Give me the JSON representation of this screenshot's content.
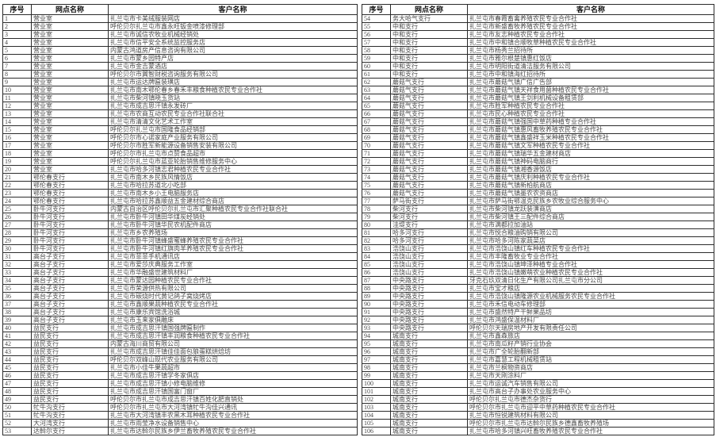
{
  "tables": {
    "columns": [
      "序号",
      "网点名称",
      "客户名称"
    ],
    "left_rows": [
      [
        "1",
        "营业室",
        "扎兰屯市卡美绒服装网店"
      ],
      [
        "2",
        "营业室",
        "呼伦贝尔扎兰屯市鑫永旺钣金喷漆修理部"
      ],
      [
        "3",
        "营业室",
        "扎兰屯市诚信农牧业机械经销处"
      ],
      [
        "4",
        "营业室",
        "扎兰屯市信平安全系统监控服务店"
      ],
      [
        "5",
        "营业室",
        "内蒙古鸿道房产信息咨询有限公司"
      ],
      [
        "6",
        "营业室",
        "扎兰屯市蒙乡园特产店"
      ],
      [
        "7",
        "营业室",
        "扎兰屯市金吉蒙酒店"
      ],
      [
        "8",
        "营业室",
        "呼伦贝尔市翼智财税咨询服务有限公司"
      ],
      [
        "9",
        "营业室",
        "扎兰屯市运达牌匾装璜店"
      ],
      [
        "10",
        "营业室",
        "扎兰屯市南木鄂伦春乡春禾丰粮食种植农民专业合作社"
      ],
      [
        "11",
        "营业室",
        "扎兰屯市柴河镇晓玉货站"
      ],
      [
        "12",
        "营业室",
        "扎兰屯市成吉思汗镇永发砖厂"
      ],
      [
        "13",
        "营业室",
        "扎兰屯市农商互动农民专业合作社联合社"
      ],
      [
        "14",
        "营业室",
        "扎兰屯市清清文化艺术工作室"
      ],
      [
        "15",
        "营业室",
        "呼伦贝尔扎兰屯市国隆食品经销部"
      ],
      [
        "16",
        "营业室",
        "呼伦贝尔市心诺家庭产业服务有限公司"
      ],
      [
        "17",
        "营业室",
        "呼伦贝尔市胜军新能源设备销售安装有限公司"
      ],
      [
        "18",
        "营业室",
        "呼伦贝尔市扎兰屯市点赞食品超市"
      ],
      [
        "19",
        "营业室",
        "呼伦贝尔扎兰屯市蓝亚轮胎销售维修服务中心"
      ],
      [
        "20",
        "营业室",
        "扎兰屯市哈多河镇志君种植农民专业合作社"
      ],
      [
        "21",
        "鄂伦春支行",
        "扎兰屯市南木乡民族风情饭店"
      ],
      [
        "22",
        "鄂伦春支行",
        "扎兰屯市哈拉苏道北小吃部"
      ],
      [
        "23",
        "鄂伦春支行",
        "扎兰屯市南木乡小王电脑服务店"
      ],
      [
        "24",
        "鄂伦春支行",
        "扎兰屯市哈拉苏鑫顺益五金建材综合商店"
      ],
      [
        "25",
        "卧牛河支行",
        "内蒙古自治区呼伦贝尔扎兰屯市汇聚种植农民专业合作社联合社"
      ],
      [
        "26",
        "卧牛河支行",
        "扎兰屯市卧牛河镇田华煤炭经销处"
      ],
      [
        "27",
        "卧牛河支行",
        "扎兰屯市卧牛河镇华民农机配件商店"
      ],
      [
        "28",
        "卧牛河支行",
        "扎兰屯市乡农养殖场"
      ],
      [
        "29",
        "卧牛河支行",
        "扎兰屯市卧牛河镇蜂盛蜜蜂养殖农民专业合作社"
      ],
      [
        "30",
        "卧牛河支行",
        "扎兰屯市卧牛河镇红旗肉羊养殖农民专业合作社"
      ],
      [
        "31",
        "高台子支行",
        "扎兰屯市菲菲手机通讯店"
      ],
      [
        "32",
        "高台子支行",
        "扎兰屯市爱莎庆典服务工作室"
      ],
      [
        "33",
        "高台子支行",
        "扎兰屯市华融盛世建筑材料厂"
      ],
      [
        "34",
        "高台子支行",
        "扎兰屯市蒙达园种植农民专业合作社"
      ],
      [
        "35",
        "高台子支行",
        "扎兰屯市荣源供热有限公司"
      ],
      [
        "36",
        "高台子支行",
        "扎兰屯市碳烧时代黄记鸽子窝烧烤店"
      ],
      [
        "37",
        "高台子支行",
        "扎兰屯市鑫顺果蔬种植农民专业合作社"
      ],
      [
        "38",
        "高台子支行",
        "扎兰屯市康乐宾馆洗浴城"
      ],
      [
        "39",
        "高台子支行",
        "扎兰屯市玉来家俱雕床"
      ],
      [
        "40",
        "益民支行",
        "扎兰屯市成吉思汗镇国强牌匾制作"
      ],
      [
        "41",
        "益民支行",
        "扎兰屯市成吉思汗镇丰润粮食种植农民专业合作社"
      ],
      [
        "42",
        "益民支行",
        "内蒙古海川商贸有限公司"
      ],
      [
        "43",
        "益民支行",
        "扎兰屯市成吉思汗镇佳佳面包狼蛋糕烘焙坊"
      ],
      [
        "44",
        "益民支行",
        "呼伦贝尔双峰山现代农业服务有限公司"
      ],
      [
        "45",
        "益民支行",
        "扎兰屯市小佳牛果蔬超市"
      ],
      [
        "46",
        "益民支行",
        "扎兰屯市成吉思汗镇学冬家俱店"
      ],
      [
        "47",
        "益民支行",
        "扎兰屯市成吉思汗镇小修电脑维修"
      ],
      [
        "48",
        "益民支行",
        "扎兰屯市成吉思汗镇国富门窗厂"
      ],
      [
        "49",
        "益民支行",
        "呼伦贝尔市扎兰屯市成吉思汗镇百姓化肥直销处"
      ],
      [
        "50",
        "牤牛沟支行",
        "呼伦贝尔市扎兰屯市大河湾镇牤牛沟佳兴通讯"
      ],
      [
        "51",
        "牤牛沟支行",
        "扎兰屯市大河湾镇丰农黑木耳种植农民专业合作社"
      ],
      [
        "52",
        "大河湾支行",
        "扎兰屯市雨莹净水设备销售中心"
      ],
      [
        "53",
        "达斡尔支行",
        "扎兰屯市达斡尔民族乡伊兰畜牧养殖农民专业合作社"
      ]
    ],
    "right_rows": [
      [
        "54",
        "务大哈气支行",
        "扎兰屯市春霞畜禽养殖农民专业合作社"
      ],
      [
        "55",
        "中和支行",
        "扎兰屯市新盛畜牧养殖农民专业合作社"
      ],
      [
        "56",
        "中和支行",
        "扎兰屯市友志种植农民专业合作社"
      ],
      [
        "57",
        "中和支行",
        "扎兰屯市中和镇合顺牧草种植农民专业合作社"
      ],
      [
        "58",
        "中和支行",
        "扎兰屯市杨秀兰招待所"
      ],
      [
        "59",
        "中和支行",
        "扎兰屯市雅尔根楚镇惠红饭店"
      ],
      [
        "60",
        "中和支行",
        "扎兰屯市明阳街道清洁服务有限公司"
      ],
      [
        "61",
        "中和支行",
        "扎兰屯市中和镇海红招待所"
      ],
      [
        "62",
        "蘑菇气支行",
        "扎兰屯市蘑菇气镇广信广告部"
      ],
      [
        "63",
        "蘑菇气支行",
        "扎兰屯市蘑菇气镇天祥食用菌种植农民专业合作社"
      ],
      [
        "64",
        "蘑菇气支行",
        "扎兰屯市蘑菇气镇王剑利机械设备租赁部"
      ],
      [
        "65",
        "蘑菇气支行",
        "扎兰屯市胜军种植农民专业合作社"
      ],
      [
        "66",
        "蘑菇气支行",
        "扎兰屯市民心种植农民专业合作社"
      ],
      [
        "67",
        "蘑菇气支行",
        "扎兰屯市蘑菇气镇强国中草药种植专业合作社"
      ],
      [
        "68",
        "蘑菇气支行",
        "扎兰屯市蘑菇气镇惠风畜牧养殖农民专业合作社"
      ],
      [
        "69",
        "蘑菇气支行",
        "扎兰屯市蘑菇气镇鑫盛祥玉米种植农民专业合作社"
      ],
      [
        "70",
        "蘑菇气支行",
        "扎兰屯市蘑菇气镇文军种植农民专业合作社"
      ],
      [
        "71",
        "蘑菇气支行",
        "扎兰屯市蘑菇气镇瑞华五金建材商店"
      ],
      [
        "72",
        "蘑菇气支行",
        "扎兰屯市蘑菇气镇神码电脑商行"
      ],
      [
        "73",
        "蘑菇气支行",
        "扎兰屯市蘑菇气镇湘香源饭店"
      ],
      [
        "74",
        "蘑菇气支行",
        "扎兰屯市蘑菇气镇庆利种植农民专业合作社"
      ],
      [
        "75",
        "蘑菇气支行",
        "扎兰屯市蘑菇气镇新柏航商店"
      ],
      [
        "76",
        "蘑菇气支行",
        "扎兰屯市蘑菇气镇墨农农资商店"
      ],
      [
        "77",
        "萨马街支行",
        "扎兰屯市萨马街鄂温克民族乡农牧业综合服务中心"
      ],
      [
        "78",
        "柴河支行",
        "扎兰屯市柴河镇龙跃装潢商店"
      ],
      [
        "79",
        "柴河支行",
        "扎兰屯市柴河镇王三配件综合商店"
      ],
      [
        "80",
        "洼堤支行",
        "扎兰屯市满都拉加油站"
      ],
      [
        "81",
        "哈多河支行",
        "扎兰屯市悦合粮油购销有限公司"
      ],
      [
        "82",
        "哈多河支行",
        "扎兰屯市哈多河陈家蔬菜店"
      ],
      [
        "83",
        "浩饶山支行",
        "扎兰屯市浩饶山镇红车种植农民专业合作社"
      ],
      [
        "84",
        "浩饶山支行",
        "扎兰屯市丰隆畜牧业专业合作社"
      ],
      [
        "85",
        "浩饶山支行",
        "扎兰屯市浩饶山镇坤泽种植专业合作社"
      ],
      [
        "86",
        "浩饶山支行",
        "扎兰屯市浩饶山镇嫩萌农业种植农民专业合作社"
      ],
      [
        "87",
        "中央路支行",
        "牙克石玖双清日化生产有限公司扎兰屯市分公司"
      ],
      [
        "88",
        "中央路支行",
        "扎兰屯市宝才粮店"
      ],
      [
        "89",
        "中央路支行",
        "扎兰屯市浩饶山镇隆源农业机械服务农民专业合作社"
      ],
      [
        "90",
        "中央路支行",
        "扎兰屯市禾信电动车修理部"
      ],
      [
        "91",
        "中央路支行",
        "扎兰屯市盛然特产干鲜果品坊"
      ],
      [
        "92",
        "中央路支行",
        "扎兰屯市鸿盛保温材料厂"
      ],
      [
        "93",
        "中央路支行",
        "呼伦贝尔天瑞房地产开发有限责任公司"
      ],
      [
        "94",
        "城南支行",
        "扎兰屯市鑫森旅店"
      ],
      [
        "95",
        "城南支行",
        "扎兰屯市南瓜籽产销行业协会"
      ],
      [
        "96",
        "城南支行",
        "扎兰屯市广全轮胎翻新部"
      ],
      [
        "97",
        "城南支行",
        "扎兰屯市嘉慧工程机械租赁站"
      ],
      [
        "98",
        "城南支行",
        "扎兰屯市兰枫物资商店"
      ],
      [
        "99",
        "城南支行",
        "扎兰屯市天刚涂料厂"
      ],
      [
        "100",
        "城南支行",
        "扎兰屯市运诚汽车销售有限公司"
      ],
      [
        "101",
        "城南支行",
        "扎兰屯市高台子办事处农业服务中心"
      ],
      [
        "102",
        "城南支行",
        "呼伦贝尔扎兰屯市德杰杂货行"
      ],
      [
        "103",
        "城南支行",
        "呼伦贝尔市扎兰屯市迎平中草药种植农民专业合作社"
      ],
      [
        "104",
        "城南支行",
        "扎兰屯市恒锐建筑材料有限公司"
      ],
      [
        "105",
        "城南支行",
        "呼伦贝尔市扎兰屯市达斡尔民族乡德鑫畜牧养殖场"
      ],
      [
        "106",
        "城南支行",
        "扎兰屯市哈多河镇兴旺畜牧养殖农民专业合作社"
      ]
    ]
  }
}
